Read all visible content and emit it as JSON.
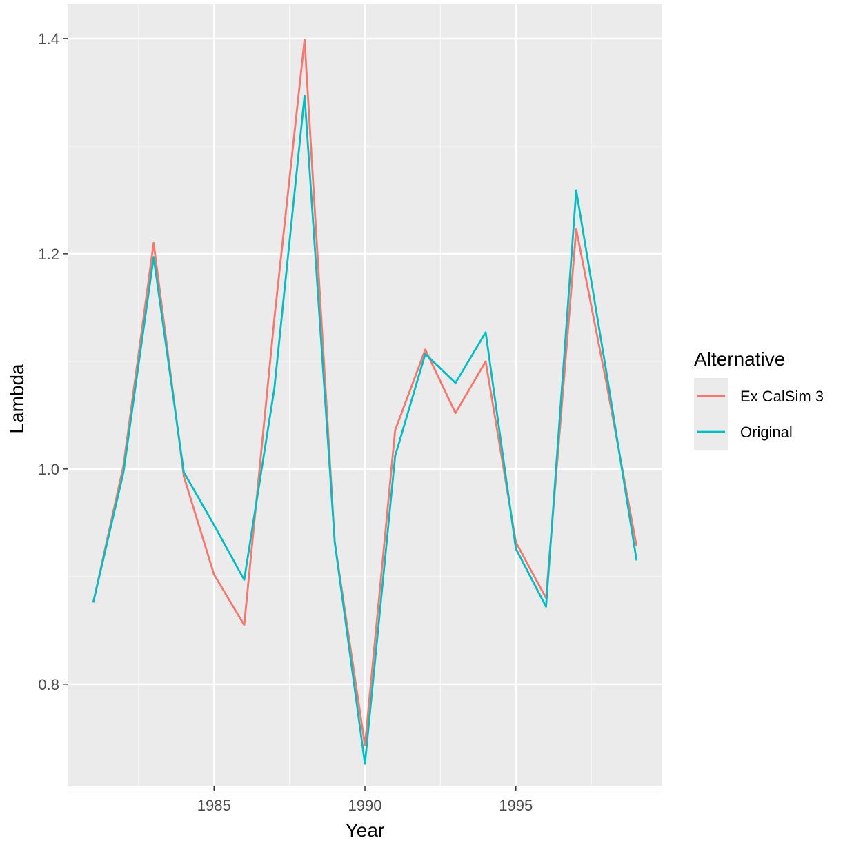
{
  "colors": {
    "panel_background": "#ebebeb",
    "grid_major": "#ffffff",
    "grid_minor": "#f7f7f7",
    "ex_calsim_3": "#f8766d",
    "original": "#00bfc4"
  },
  "chart_data": {
    "type": "line",
    "title": "",
    "xlabel": "Year",
    "ylabel": "Lambda",
    "xlim": [
      1980.15,
      1999.85
    ],
    "ylim": [
      0.705,
      1.432
    ],
    "x_ticks": [
      1985,
      1990,
      1995
    ],
    "x_tick_labels": [
      "1985",
      "1990",
      "1995"
    ],
    "x_minor_ticks": [
      1982.5,
      1987.5,
      1992.5,
      1997.5
    ],
    "y_ticks": [
      0.8,
      1.0,
      1.2,
      1.4
    ],
    "y_tick_labels": [
      "0.8",
      "1.0",
      "1.2",
      "1.4"
    ],
    "y_minor_ticks": [
      0.7,
      0.9,
      1.1,
      1.3
    ],
    "grid": true,
    "legend": {
      "title": "Alternative",
      "position": "right"
    },
    "x": [
      1981,
      1982,
      1983,
      1984,
      1985,
      1986,
      1987,
      1988,
      1989,
      1990,
      1991,
      1992,
      1993,
      1994,
      1995,
      1996,
      1997,
      1998,
      1999
    ],
    "series": [
      {
        "name": "Ex CalSim 3",
        "color": "#f8766d",
        "values": [
          0.876,
          1.003,
          1.21,
          0.993,
          0.902,
          0.855,
          1.14,
          1.399,
          0.932,
          0.743,
          1.036,
          1.111,
          1.052,
          1.1,
          0.932,
          0.88,
          1.223,
          1.08,
          0.928
        ]
      },
      {
        "name": "Original",
        "color": "#00bfc4",
        "values": [
          0.876,
          0.997,
          1.197,
          0.997,
          0.948,
          0.897,
          1.075,
          1.347,
          0.932,
          0.726,
          1.012,
          1.107,
          1.08,
          1.127,
          0.926,
          0.872,
          1.259,
          1.09,
          0.915
        ]
      }
    ]
  }
}
